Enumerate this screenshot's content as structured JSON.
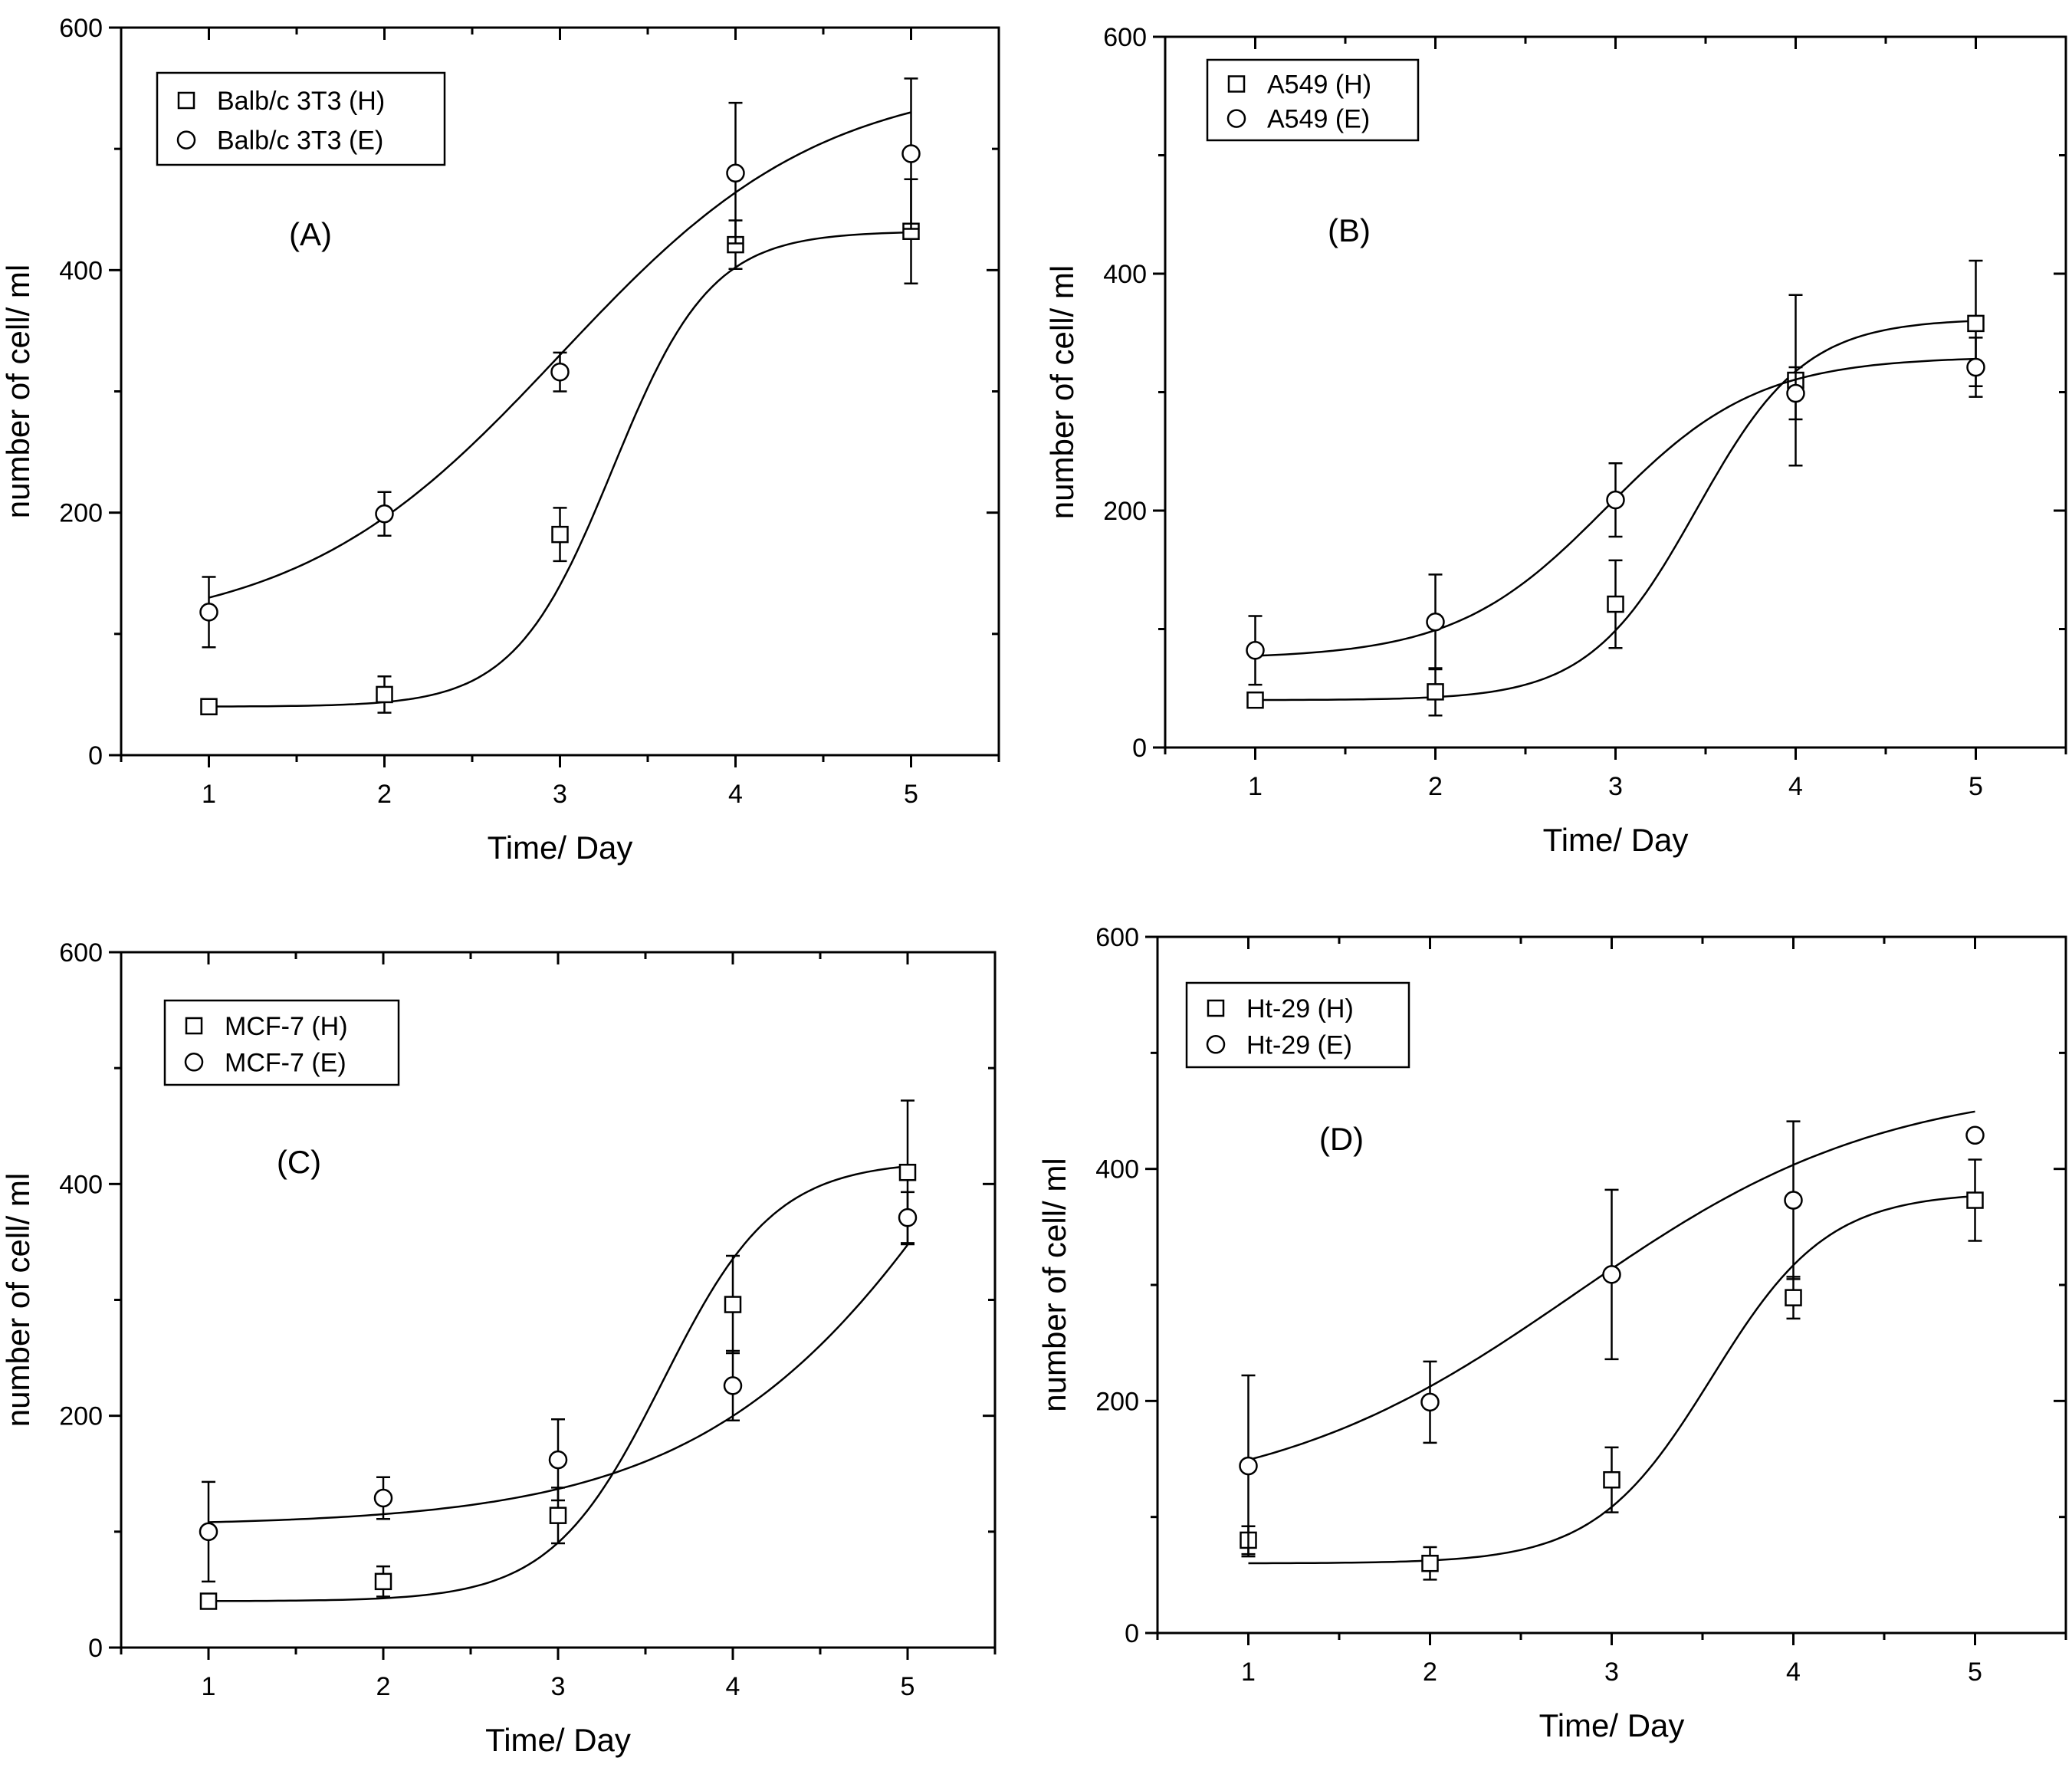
{
  "chart_data": [
    {
      "type": "scatter",
      "panel_label": "(A)",
      "xlabel": "Time/ Day",
      "ylabel": "number of cell/ ml",
      "xlim": [
        0.5,
        5.5
      ],
      "ylim": [
        0,
        600
      ],
      "x_ticks": [
        1,
        2,
        3,
        4,
        5
      ],
      "y_ticks": [
        0,
        200,
        400,
        600
      ],
      "legend_position": "top-left",
      "series": [
        {
          "name": "Balb/c 3T3 (H)",
          "marker": "square",
          "x": [
            1,
            2,
            3,
            4,
            5
          ],
          "values": [
            40,
            50,
            182,
            421,
            432
          ],
          "errors": [
            5,
            15,
            22,
            20,
            43
          ],
          "fit": {
            "min": 40,
            "max": 432,
            "x0": 3.3,
            "dx": 0.28
          }
        },
        {
          "name": "Balb/c 3T3 (E)",
          "marker": "circle",
          "x": [
            1,
            2,
            3,
            4,
            5
          ],
          "values": [
            118,
            199,
            316,
            480,
            496
          ],
          "errors": [
            29,
            18,
            16,
            58,
            62
          ],
          "fit": {
            "min": 100,
            "max": 560,
            "x0": 3.0,
            "dx": 0.75
          }
        }
      ]
    },
    {
      "type": "scatter",
      "panel_label": "(B)",
      "xlabel": "Time/ Day",
      "ylabel": "number of cell/ ml",
      "xlim": [
        0.5,
        5.5
      ],
      "ylim": [
        0,
        600
      ],
      "x_ticks": [
        1,
        2,
        3,
        4,
        5
      ],
      "y_ticks": [
        0,
        200,
        400,
        600
      ],
      "legend_position": "top-left",
      "series": [
        {
          "name": "A549 (H)",
          "marker": "square",
          "x": [
            1,
            2,
            3,
            4,
            5
          ],
          "values": [
            40,
            47,
            121,
            310,
            358
          ],
          "errors": [
            4,
            20,
            37,
            72,
            53
          ],
          "fit": {
            "min": 40,
            "max": 362,
            "x0": 3.45,
            "dx": 0.3
          }
        },
        {
          "name": "A549 (E)",
          "marker": "circle",
          "x": [
            1,
            2,
            3,
            4,
            5
          ],
          "values": [
            82,
            106,
            209,
            299,
            321
          ],
          "errors": [
            29,
            40,
            31,
            22,
            25
          ],
          "fit": {
            "min": 75,
            "max": 330,
            "x0": 2.95,
            "dx": 0.42
          }
        }
      ]
    },
    {
      "type": "scatter",
      "panel_label": "(C)",
      "xlabel": "Time/ Day",
      "ylabel": "number of cell/ ml",
      "xlim": [
        0.5,
        5.5
      ],
      "ylim": [
        0,
        600
      ],
      "x_ticks": [
        1,
        2,
        3,
        4,
        5
      ],
      "y_ticks": [
        0,
        200,
        400,
        600
      ],
      "legend_position": "top-left",
      "series": [
        {
          "name": "MCF-7 (H)",
          "marker": "square",
          "x": [
            1,
            2,
            3,
            4,
            5
          ],
          "values": [
            40,
            57,
            114,
            296,
            410
          ],
          "errors": [
            4,
            13,
            24,
            42,
            62
          ],
          "fit": {
            "min": 40,
            "max": 420,
            "x0": 3.6,
            "dx": 0.32
          }
        },
        {
          "name": "MCF-7 (E)",
          "marker": "circle",
          "x": [
            1,
            2,
            3,
            4,
            5
          ],
          "values": [
            100,
            129,
            162,
            226,
            371
          ],
          "errors": [
            43,
            18,
            35,
            30,
            22
          ],
          "fit": {
            "min": 105,
            "max": 900,
            "x0": 5.7,
            "dx": 0.85
          }
        }
      ]
    },
    {
      "type": "scatter",
      "panel_label": "(D)",
      "xlabel": "Time/ Day",
      "ylabel": "number of cell/ ml",
      "xlim": [
        0.5,
        5.5
      ],
      "ylim": [
        0,
        600
      ],
      "x_ticks": [
        1,
        2,
        3,
        4,
        5
      ],
      "y_ticks": [
        0,
        200,
        400,
        600
      ],
      "legend_position": "top-left",
      "series": [
        {
          "name": "Ht-29 (H)",
          "marker": "square",
          "x": [
            1,
            2,
            3,
            4,
            5
          ],
          "values": [
            80,
            60,
            132,
            289,
            373
          ],
          "errors": [
            12,
            14,
            28,
            18,
            35
          ],
          "fit": {
            "min": 60,
            "max": 380,
            "x0": 3.55,
            "dx": 0.32
          }
        },
        {
          "name": "Ht-29 (E)",
          "marker": "circle",
          "x": [
            1,
            2,
            3,
            4,
            5
          ],
          "values": [
            144,
            199,
            309,
            373,
            429
          ],
          "errors": [
            78,
            35,
            73,
            68,
            4
          ],
          "fit": {
            "min": 110,
            "max": 475,
            "x0": 2.8,
            "dx": 0.85
          }
        }
      ]
    }
  ]
}
